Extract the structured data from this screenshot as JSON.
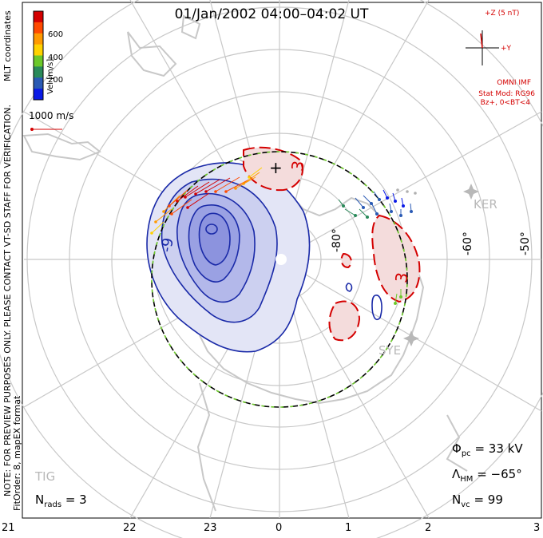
{
  "title": "01/Jan/2002 04:00–04:02 UT",
  "colorbar": {
    "axis_label": "Vel [m/s]",
    "ticks": [
      "600",
      "400",
      "200"
    ],
    "colors": [
      "#d40000",
      "#ff4a00",
      "#ff9a00",
      "#ffd200",
      "#6cc82a",
      "#2a8a5a",
      "#2a5ab4",
      "#0a1ae6"
    ]
  },
  "side_note_top": "MLT coordinates",
  "side_note_left_1": "NOTE: FOR PREVIEW PURPOSES ONLY. PLEASE CONTACT VT-SD STAFF FOR VERIFICATION.",
  "side_note_left_2": "FitOrder: 8, mapEX format",
  "reference_vector": {
    "label": "1000 m/s"
  },
  "imf": {
    "z_label": "+Z (5 nT)",
    "y_label": "+Y",
    "source": "OMNI IMF",
    "stat_mod": "Stat Mod: RG96",
    "condition": "Bz+, 0<BT<4"
  },
  "latitude_labels": [
    "-80°",
    "-60°",
    "-50°"
  ],
  "mlt_labels": [
    "21",
    "22",
    "23",
    "0",
    "1",
    "2",
    "3"
  ],
  "sites": [
    "KER",
    "SYE",
    "TIG"
  ],
  "contour_labels": {
    "negative": "-9",
    "positive": "3",
    "max_marker": "+"
  },
  "stats": {
    "phi_pc_symbol": "Φ",
    "phi_pc_sub": "pc",
    "phi_pc_value": "= 33 kV",
    "lambda_hm_symbol": "Λ",
    "lambda_hm_sub": "HM",
    "lambda_hm_value": "= −65°",
    "n_vc_symbol": "N",
    "n_vc_sub": "vc",
    "n_vc_value": "= 99",
    "n_rads_symbol": "N",
    "n_rads_sub": "rads",
    "n_rads_value": "= 3"
  }
}
